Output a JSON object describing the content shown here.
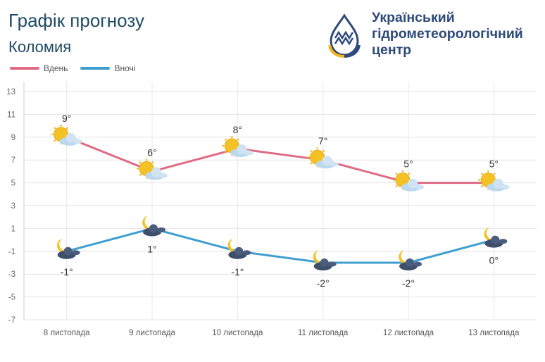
{
  "header": {
    "title": "Графік прогнозу",
    "subtitle": "Коломия"
  },
  "org": {
    "line1": "Український",
    "line2": "гідрометеорологічний",
    "line3": "центр"
  },
  "legend": {
    "day_label": "Вдень",
    "night_label": "Вночі"
  },
  "colors": {
    "day": "#e06b85",
    "night": "#3f9fd0",
    "brand": "#2d4a7a",
    "accent": "#f2b51f"
  },
  "chart_data": {
    "type": "line",
    "categories": [
      "8 листопада",
      "9 листопада",
      "10 листопада",
      "11 листопада",
      "12 листопада",
      "13 листопада"
    ],
    "series": [
      {
        "name": "Вдень",
        "values": [
          9,
          6,
          8,
          7,
          5,
          5
        ],
        "labels": [
          "9°",
          "6°",
          "8°",
          "7°",
          "5°",
          "5°"
        ],
        "icon": "sun-behind-cloud-icon"
      },
      {
        "name": "Вночі",
        "values": [
          -1,
          1,
          -1,
          -2,
          -2,
          0
        ],
        "labels": [
          "-1°",
          "1°",
          "-1°",
          "-2°",
          "-2°",
          "0°"
        ],
        "icon": "moon-behind-cloud-icon"
      }
    ],
    "ylim": [
      -7,
      13
    ],
    "yticks": [
      13,
      11,
      9,
      7,
      5,
      3,
      1,
      -1,
      -3,
      -5,
      -7
    ],
    "grid": true
  }
}
